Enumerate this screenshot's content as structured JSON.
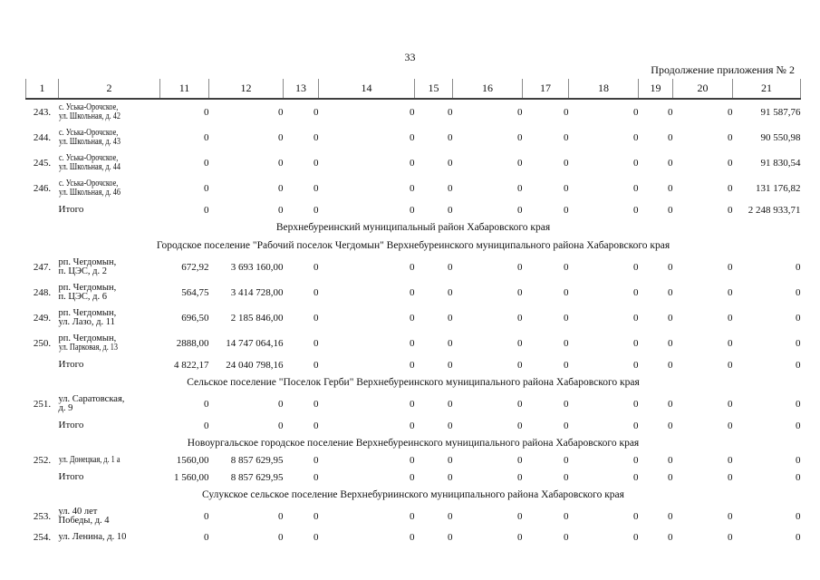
{
  "page": {
    "number": "33",
    "continuation": "Продолжение приложения № 2"
  },
  "table": {
    "columns": [
      "1",
      "2",
      "11",
      "12",
      "13",
      "14",
      "15",
      "16",
      "17",
      "18",
      "19",
      "20",
      "21"
    ],
    "rows": [
      {
        "type": "data",
        "num": "243.",
        "addr": [
          "с. Уська-Орочское,",
          "ул. Школьная, д. 42"
        ],
        "cond": [
          true,
          true
        ],
        "values": [
          "0",
          "0",
          "0",
          "0",
          "0",
          "0",
          "0",
          "0",
          "0",
          "0",
          "91 587,76"
        ]
      },
      {
        "type": "data",
        "num": "244.",
        "addr": [
          "с. Уська-Орочское,",
          "ул. Школьная, д. 43"
        ],
        "cond": [
          true,
          true
        ],
        "values": [
          "0",
          "0",
          "0",
          "0",
          "0",
          "0",
          "0",
          "0",
          "0",
          "0",
          "90 550,98"
        ]
      },
      {
        "type": "data",
        "num": "245.",
        "addr": [
          "с. Уська-Орочское,",
          "ул. Школьная, д. 44"
        ],
        "cond": [
          true,
          true
        ],
        "values": [
          "0",
          "0",
          "0",
          "0",
          "0",
          "0",
          "0",
          "0",
          "0",
          "0",
          "91 830,54"
        ]
      },
      {
        "type": "data",
        "num": "246.",
        "addr": [
          "с. Уська-Орочское,",
          "ул. Школьная, д. 46"
        ],
        "cond": [
          true,
          true
        ],
        "values": [
          "0",
          "0",
          "0",
          "0",
          "0",
          "0",
          "0",
          "0",
          "0",
          "0",
          "131 176,82"
        ]
      },
      {
        "type": "total",
        "label": "Итого",
        "values": [
          "0",
          "0",
          "0",
          "0",
          "0",
          "0",
          "0",
          "0",
          "0",
          "0",
          "2 248 933,71"
        ]
      },
      {
        "type": "section",
        "text": "Верхнебуреинский муниципальный район Хабаровского края"
      },
      {
        "type": "section",
        "text": "Городское поселение \"Рабочий поселок Чегдомын\" Верхнебуреинского муниципального района Хабаровского края"
      },
      {
        "type": "data",
        "num": "247.",
        "addr": [
          "рп. Чегдомын,",
          "п. ЦЭС, д. 2"
        ],
        "cond": [
          false,
          false
        ],
        "values": [
          "672,92",
          "3 693 160,00",
          "0",
          "0",
          "0",
          "0",
          "0",
          "0",
          "0",
          "0",
          "0"
        ]
      },
      {
        "type": "data",
        "num": "248.",
        "addr": [
          "рп. Чегдомын,",
          "п. ЦЭС, д. 6"
        ],
        "cond": [
          false,
          false
        ],
        "values": [
          "564,75",
          "3 414 728,00",
          "0",
          "0",
          "0",
          "0",
          "0",
          "0",
          "0",
          "0",
          "0"
        ]
      },
      {
        "type": "data",
        "num": "249.",
        "addr": [
          "рп. Чегдомын,",
          "ул. Лазо, д. 11"
        ],
        "cond": [
          false,
          false
        ],
        "values": [
          "696,50",
          "2 185 846,00",
          "0",
          "0",
          "0",
          "0",
          "0",
          "0",
          "0",
          "0",
          "0"
        ]
      },
      {
        "type": "data",
        "num": "250.",
        "addr": [
          "рп. Чегдомын,",
          "ул. Парковая, д. 13"
        ],
        "cond": [
          false,
          true
        ],
        "values": [
          "2888,00",
          "14 747 064,16",
          "0",
          "0",
          "0",
          "0",
          "0",
          "0",
          "0",
          "0",
          "0"
        ]
      },
      {
        "type": "total",
        "label": "Итого",
        "values": [
          "4 822,17",
          "24 040 798,16",
          "0",
          "0",
          "0",
          "0",
          "0",
          "0",
          "0",
          "0",
          "0"
        ]
      },
      {
        "type": "section",
        "text": "Сельское поселение \"Поселок Герби\" Верхнебуреинского муниципального района Хабаровского края"
      },
      {
        "type": "data",
        "num": "251.",
        "addr": [
          "ул. Саратовская,",
          "д. 9"
        ],
        "cond": [
          false,
          false
        ],
        "values": [
          "0",
          "0",
          "0",
          "0",
          "0",
          "0",
          "0",
          "0",
          "0",
          "0",
          "0"
        ]
      },
      {
        "type": "total",
        "label": "Итого",
        "values": [
          "0",
          "0",
          "0",
          "0",
          "0",
          "0",
          "0",
          "0",
          "0",
          "0",
          "0"
        ]
      },
      {
        "type": "section",
        "text": "Новоургальское городское поселение Верхнебуреинского муниципального района Хабаровского края"
      },
      {
        "type": "data",
        "num": "252.",
        "short": true,
        "addr": [
          "ул. Донецкая, д. 1 а"
        ],
        "cond": [
          true
        ],
        "values": [
          "1560,00",
          "8 857 629,95",
          "0",
          "0",
          "0",
          "0",
          "0",
          "0",
          "0",
          "0",
          "0"
        ]
      },
      {
        "type": "total",
        "label": "Итого",
        "values": [
          "1 560,00",
          "8 857 629,95",
          "0",
          "0",
          "0",
          "0",
          "0",
          "0",
          "0",
          "0",
          "0"
        ]
      },
      {
        "type": "section",
        "text": "Сулукское сельское поселение Верхнебуриинского муниципального района Хабаровского края"
      },
      {
        "type": "data",
        "num": "253.",
        "addr": [
          "ул. 40 лет",
          "Победы, д. 4"
        ],
        "cond": [
          false,
          false
        ],
        "values": [
          "0",
          "0",
          "0",
          "0",
          "0",
          "0",
          "0",
          "0",
          "0",
          "0",
          "0"
        ]
      },
      {
        "type": "data",
        "num": "254.",
        "short": true,
        "addr": [
          "ул. Ленина, д. 10"
        ],
        "cond": [
          false
        ],
        "values": [
          "0",
          "0",
          "0",
          "0",
          "0",
          "0",
          "0",
          "0",
          "0",
          "0",
          "0"
        ]
      }
    ]
  }
}
